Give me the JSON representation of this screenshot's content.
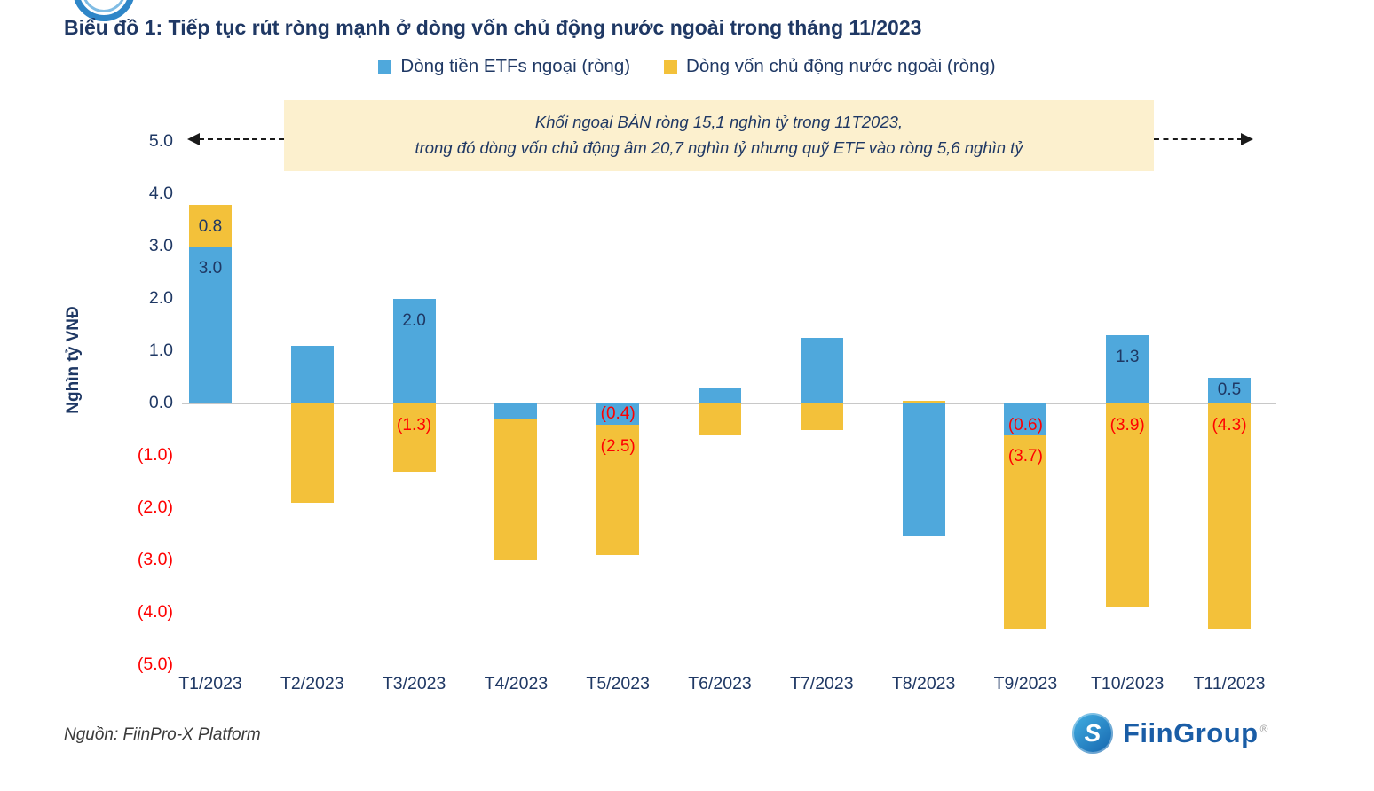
{
  "header": {
    "title": "Biểu đồ 1: Tiếp tục rút ròng mạnh ở dòng vốn chủ động nước ngoài trong tháng 11/2023"
  },
  "footer": {
    "source": "Nguồn: FiinPro-X Platform",
    "brand_name": "FiinGroup",
    "brand_mark": "®",
    "brand_monogram": "S"
  },
  "chart_data": {
    "type": "bar",
    "stacked": true,
    "title": "Biểu đồ 1: Tiếp tục rút ròng mạnh ở dòng vốn chủ động nước ngoài trong tháng 11/2023",
    "ylabel": "Nghìn tỷ VNĐ",
    "ylim": [
      -5.0,
      5.0
    ],
    "grid": false,
    "legend_position": "top-center",
    "zero_line_color": "#C8C8C8",
    "annotation": {
      "line1": "Khối ngoại BÁN ròng 15,1 nghìn tỷ trong 11T2023,",
      "line2": "trong đó dòng vốn chủ động âm 20,7 nghìn tỷ nhưng quỹ ETF vào ròng 5,6 nghìn tỷ",
      "background": "#FCF0CE"
    },
    "yticks": [
      {
        "value": 5.0,
        "label": "5.0"
      },
      {
        "value": 4.0,
        "label": "4.0"
      },
      {
        "value": 3.0,
        "label": "3.0"
      },
      {
        "value": 2.0,
        "label": "2.0"
      },
      {
        "value": 1.0,
        "label": "1.0"
      },
      {
        "value": 0.0,
        "label": "0.0"
      },
      {
        "value": -1.0,
        "label": "(1.0)"
      },
      {
        "value": -2.0,
        "label": "(2.0)"
      },
      {
        "value": -3.0,
        "label": "(3.0)"
      },
      {
        "value": -4.0,
        "label": "(4.0)"
      },
      {
        "value": -5.0,
        "label": "(5.0)"
      }
    ],
    "categories": [
      "T1/2023",
      "T2/2023",
      "T3/2023",
      "T4/2023",
      "T5/2023",
      "T6/2023",
      "T7/2023",
      "T8/2023",
      "T9/2023",
      "T10/2023",
      "T11/2023"
    ],
    "series": [
      {
        "name": "Dòng tiền ETFs ngoại (ròng)",
        "color": "#4FA8DC",
        "values": [
          3.0,
          1.1,
          2.0,
          -0.3,
          -0.4,
          0.3,
          1.25,
          -2.55,
          -0.6,
          1.3,
          0.5
        ],
        "labels": [
          "3.0",
          null,
          "2.0",
          null,
          "(0.4)",
          null,
          null,
          null,
          "(0.6)",
          "1.3",
          "0.5"
        ]
      },
      {
        "name": "Dòng vốn chủ động nước ngoài (ròng)",
        "color": "#F3C13A",
        "values": [
          0.8,
          -1.9,
          -1.3,
          -2.7,
          -2.5,
          -0.6,
          -0.5,
          0.05,
          -3.7,
          -3.9,
          -4.3
        ],
        "labels": [
          "0.8",
          null,
          "(1.3)",
          null,
          "(2.5)",
          null,
          null,
          null,
          "(3.7)",
          "(3.9)",
          "(4.3)"
        ]
      }
    ],
    "label_colors": {
      "positive": "#1F3864",
      "negative": "#FF0000"
    }
  }
}
